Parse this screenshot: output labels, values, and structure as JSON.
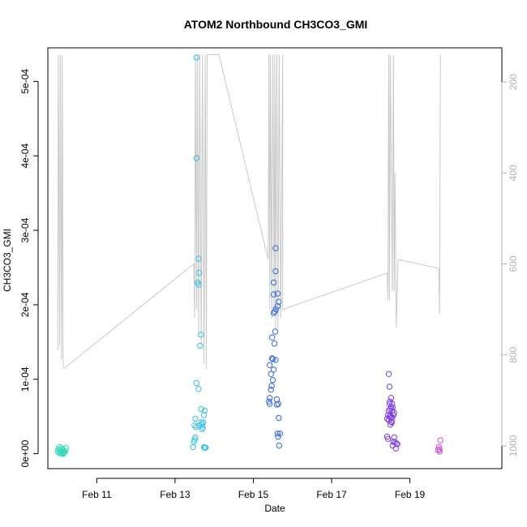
{
  "chart_data": {
    "type": "scatter",
    "title": "ATOM2 Northbound CH3CO3_GMI",
    "xlabel": "Date",
    "ylabel": "CH3CO3_GMI",
    "x_range_days": [
      9.75,
      21.35
    ],
    "xlim": [
      9.75,
      21.35
    ],
    "ylim": [
      -2e-05,
      0.000545
    ],
    "y2lim": [
      1050,
      125
    ],
    "x_ticks": [
      {
        "value": 11,
        "label": "Feb 11"
      },
      {
        "value": 13,
        "label": "Feb 13"
      },
      {
        "value": 15,
        "label": "Feb 15"
      },
      {
        "value": 17,
        "label": "Feb 17"
      },
      {
        "value": 19,
        "label": "Feb 19"
      }
    ],
    "y_ticks": [
      {
        "value": 0,
        "label": "0e+00"
      },
      {
        "value": 0.0001,
        "label": "1e-04"
      },
      {
        "value": 0.0002,
        "label": "2e-04"
      },
      {
        "value": 0.0003,
        "label": "3e-04"
      },
      {
        "value": 0.0004,
        "label": "4e-04"
      },
      {
        "value": 0.0005,
        "label": "5e-04"
      }
    ],
    "y2_ticks": [
      {
        "value": 200,
        "label": "200"
      },
      {
        "value": 400,
        "label": "400"
      },
      {
        "value": 600,
        "label": "600"
      },
      {
        "value": 800,
        "label": "800"
      },
      {
        "value": 1000,
        "label": "1000"
      }
    ],
    "series": [
      {
        "color": "#33d6b8",
        "points": [
          [
            10.0,
            3e-06
          ],
          [
            10.02,
            6e-06
          ],
          [
            10.04,
            1e-06
          ],
          [
            10.06,
            4e-06
          ],
          [
            10.08,
            2e-06
          ],
          [
            10.1,
            7e-06
          ],
          [
            10.12,
            3e-06
          ],
          [
            10.14,
            5e-06
          ],
          [
            10.16,
            1e-06
          ],
          [
            10.18,
            2e-06
          ],
          [
            10.2,
            4e-06
          ],
          [
            10.22,
            8e-06
          ],
          [
            10.1,
            0.0
          ],
          [
            10.05,
            9e-06
          ],
          [
            10.15,
            0.0
          ]
        ]
      },
      {
        "color": "#33c0e8",
        "points": [
          [
            13.55,
            0.000532
          ],
          [
            13.55,
            0.000397
          ],
          [
            13.6,
            0.000262
          ],
          [
            13.62,
            0.000243
          ],
          [
            13.58,
            0.00023
          ],
          [
            13.6,
            0.000227
          ],
          [
            13.66,
            0.00016
          ],
          [
            13.64,
            0.000145
          ],
          [
            13.55,
            9.5e-05
          ],
          [
            13.6,
            8.7e-05
          ],
          [
            13.67,
            6e-05
          ],
          [
            13.76,
            5.8e-05
          ],
          [
            13.74,
            5.2e-05
          ],
          [
            13.52,
            4.7e-05
          ],
          [
            13.67,
            4.2e-05
          ],
          [
            13.72,
            4.2e-05
          ],
          [
            13.69,
            3.9e-05
          ],
          [
            13.62,
            3.8e-05
          ],
          [
            13.5,
            3.8e-05
          ],
          [
            13.54,
            3.6e-05
          ],
          [
            13.71,
            3.5e-05
          ],
          [
            13.69,
            3.3e-05
          ],
          [
            13.52,
            2.2e-05
          ],
          [
            13.5,
            1.9e-05
          ],
          [
            13.48,
            1.6e-05
          ],
          [
            13.46,
            9e-06
          ],
          [
            13.74,
            9e-06
          ],
          [
            13.78,
            8e-06
          ],
          [
            13.76,
            8e-06
          ]
        ]
      },
      {
        "color": "#3366e6",
        "points": [
          [
            15.57,
            0.000276
          ],
          [
            15.57,
            0.000245
          ],
          [
            15.52,
            0.00023
          ],
          [
            15.62,
            0.000215
          ],
          [
            15.52,
            0.000214
          ],
          [
            15.65,
            0.000204
          ],
          [
            15.62,
            0.000198
          ],
          [
            15.58,
            0.000194
          ],
          [
            15.55,
            0.000191
          ],
          [
            15.52,
            0.000189
          ],
          [
            15.56,
            0.000164
          ],
          [
            15.48,
            0.000156
          ],
          [
            15.54,
            0.000148
          ],
          [
            15.48,
            0.000128
          ],
          [
            15.5,
            0.000127
          ],
          [
            15.57,
            0.000126
          ],
          [
            15.42,
            0.000119
          ],
          [
            15.52,
            0.000113
          ],
          [
            15.45,
            0.000107
          ],
          [
            15.5,
            9.9e-05
          ],
          [
            15.47,
            9.1e-05
          ],
          [
            15.45,
            8.6e-05
          ],
          [
            15.42,
            7.5e-05
          ],
          [
            15.6,
            7.3e-05
          ],
          [
            15.4,
            7e-05
          ],
          [
            15.64,
            6.7e-05
          ],
          [
            15.6,
            6.6e-05
          ],
          [
            15.42,
            6.7e-05
          ],
          [
            15.65,
            4.8e-05
          ],
          [
            15.62,
            2.7e-05
          ],
          [
            15.68,
            2.7e-05
          ],
          [
            15.63,
            2.3e-05
          ],
          [
            15.66,
            1.1e-05
          ]
        ]
      },
      {
        "color": "#7a3df0",
        "points": [
          [
            18.46,
            0.000107
          ],
          [
            18.48,
            9e-05
          ],
          [
            18.52,
            7.5e-05
          ],
          [
            18.49,
            7e-05
          ],
          [
            18.55,
            6.7e-05
          ],
          [
            18.48,
            6.7e-05
          ],
          [
            18.52,
            6.3e-05
          ],
          [
            18.56,
            6.2e-05
          ],
          [
            18.5,
            6e-05
          ],
          [
            18.55,
            5.8e-05
          ],
          [
            18.46,
            5.8e-05
          ],
          [
            18.6,
            5.5e-05
          ],
          [
            18.44,
            5.2e-05
          ],
          [
            18.58,
            5.2e-05
          ],
          [
            18.5,
            5.1e-05
          ],
          [
            18.48,
            5e-05
          ],
          [
            18.52,
            4.9e-05
          ],
          [
            18.55,
            4.8e-05
          ],
          [
            18.42,
            4.7e-05
          ],
          [
            18.46,
            4.5e-05
          ],
          [
            18.52,
            4.3e-05
          ],
          [
            18.54,
            4.2e-05
          ],
          [
            18.5,
            3.9e-05
          ],
          [
            18.42,
            2.3e-05
          ],
          [
            18.44,
            2e-05
          ],
          [
            18.6,
            2.2e-05
          ],
          [
            18.58,
            1.6e-05
          ],
          [
            18.62,
            1.5e-05
          ],
          [
            18.66,
            1.4e-05
          ],
          [
            18.56,
            1.1e-05
          ],
          [
            18.64,
            7e-06
          ],
          [
            18.68,
            1.3e-05
          ]
        ]
      },
      {
        "color": "#d14be0",
        "points": [
          [
            19.78,
            1.8e-05
          ],
          [
            19.74,
            9e-06
          ],
          [
            19.76,
            6e-06
          ],
          [
            19.72,
            5e-06
          ],
          [
            19.76,
            3e-06
          ]
        ]
      }
    ],
    "pressure_line": {
      "color": "#c8c8c8",
      "points": [
        [
          10.0,
          790
        ],
        [
          10.02,
          140
        ],
        [
          10.05,
          780
        ],
        [
          10.07,
          140
        ],
        [
          10.1,
          810
        ],
        [
          10.12,
          140
        ],
        [
          10.14,
          820
        ],
        [
          10.16,
          830
        ],
        [
          13.48,
          600
        ],
        [
          13.5,
          720
        ],
        [
          13.52,
          140
        ],
        [
          13.55,
          700
        ],
        [
          13.57,
          140
        ],
        [
          13.6,
          760
        ],
        [
          13.63,
          140
        ],
        [
          13.67,
          780
        ],
        [
          13.7,
          140
        ],
        [
          13.74,
          820
        ],
        [
          13.77,
          140
        ],
        [
          13.8,
          830
        ],
        [
          13.82,
          140
        ],
        [
          14.12,
          140
        ],
        [
          15.38,
          590
        ],
        [
          15.4,
          140
        ],
        [
          15.42,
          700
        ],
        [
          15.44,
          140
        ],
        [
          15.47,
          720
        ],
        [
          15.5,
          140
        ],
        [
          15.53,
          700
        ],
        [
          15.55,
          140
        ],
        [
          15.57,
          740
        ],
        [
          15.6,
          140
        ],
        [
          15.63,
          740
        ],
        [
          15.66,
          140
        ],
        [
          15.7,
          720
        ],
        [
          15.75,
          140
        ],
        [
          15.75,
          700
        ],
        [
          18.42,
          620
        ],
        [
          18.44,
          680
        ],
        [
          18.46,
          140
        ],
        [
          18.48,
          680
        ],
        [
          18.5,
          140
        ],
        [
          18.55,
          660
        ],
        [
          18.58,
          140
        ],
        [
          18.6,
          660
        ],
        [
          18.62,
          400
        ],
        [
          18.65,
          740
        ],
        [
          18.7,
          590
        ],
        [
          19.74,
          610
        ],
        [
          19.76,
          710
        ],
        [
          19.78,
          140
        ]
      ]
    }
  }
}
